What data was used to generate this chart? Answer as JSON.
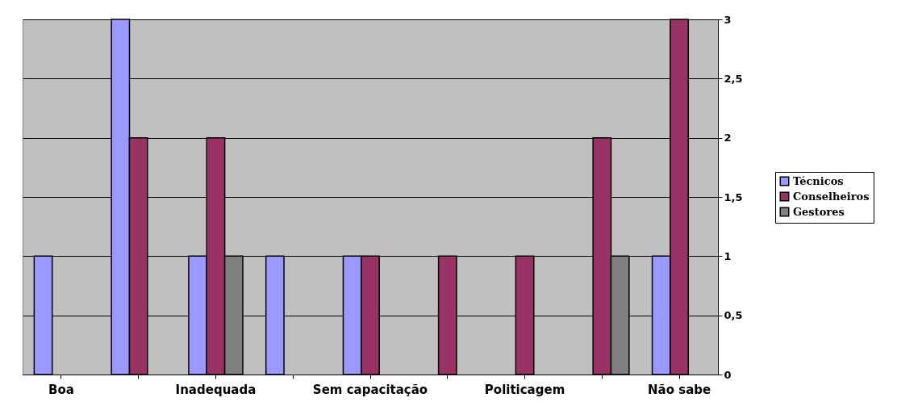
{
  "chart_data": {
    "type": "bar",
    "categories": [
      "Boa",
      null,
      "Inadequada",
      null,
      "Sem capacitação",
      null,
      "Politicagem",
      null,
      "Não sabe"
    ],
    "series": [
      {
        "name": "Técnicos",
        "color": "#9999ff",
        "values": [
          1,
          3,
          1,
          1,
          1,
          0,
          0,
          0,
          1
        ]
      },
      {
        "name": "Conselheiros",
        "color": "#993366",
        "values": [
          0,
          2,
          2,
          0,
          1,
          1,
          1,
          2,
          3
        ]
      },
      {
        "name": "Gestores",
        "color": "#808080",
        "values": [
          0,
          0,
          1,
          0,
          0,
          0,
          0,
          1,
          0
        ]
      }
    ],
    "ylim": [
      0,
      3
    ],
    "yticks": [
      0,
      {
        "value": 0.5,
        "label": "0,5"
      },
      1,
      {
        "value": 1.5,
        "label": "1,5"
      },
      2,
      {
        "value": 2.5,
        "label": "2,5"
      },
      3
    ],
    "grid": "y",
    "legend": "right"
  }
}
